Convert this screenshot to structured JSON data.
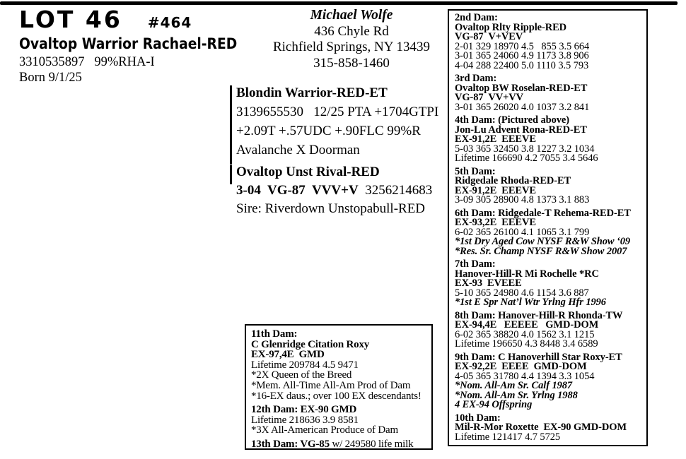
{
  "header": {
    "lot": "LOT 46",
    "number": "#464",
    "name": "Ovaltop Warrior Rachael-RED",
    "reg_line": "3310535897   99%RHA-I",
    "born": "Born 9/1/25"
  },
  "consignor": {
    "name": "Michael Wolfe",
    "address1": "436 Chyle Rd",
    "address2": "Richfield Springs, NY 13439",
    "phone": "315-858-1460"
  },
  "sire": {
    "name": "Blondin Warrior-RED-ET",
    "line1": "3139655530   12/25 PTA +1704GTPI",
    "line2": "+2.09T +.57UDC +.90FLC 99%R",
    "line3": "Avalanche X Doorman"
  },
  "dam": {
    "name": "Ovaltop Unst Rival-RED",
    "score": "3-04  VG-87  VVV+V",
    "reg": "  3256214683",
    "sire_line": "Sire: Riverdown Unstopabull-RED"
  },
  "maternal_box": {
    "blocks": [
      {
        "lines": [
          {
            "s": "b",
            "t": "11th Dam:"
          },
          {
            "s": "b",
            "t": "C Glenridge Citation Roxy"
          },
          {
            "s": "b",
            "t": "EX-97,4E  GMD"
          },
          {
            "s": "r",
            "t": "Lifetime 209784 4.5 9471"
          },
          {
            "s": "r",
            "t": "*2X Queen of the Breed"
          },
          {
            "s": "r",
            "t": "*Mem. All-Time All-Am Prod of Dam"
          },
          {
            "s": "r",
            "t": "*16-EX daus.; over 100 EX descendants!"
          }
        ]
      },
      {
        "lines": [
          {
            "s": "b",
            "t": "12th Dam: EX-90 GMD"
          },
          {
            "s": "r",
            "t": "Lifetime 218636 3.9 8581"
          },
          {
            "s": "r",
            "t": "*3X All-American Produce of Dam"
          }
        ]
      },
      {
        "lines": [
          {
            "s": "b",
            "t": "13th Dam: VG-85",
            "t2": " w/ 249580 life milk"
          }
        ]
      }
    ]
  },
  "pedigree_box": {
    "blocks": [
      {
        "lines": [
          {
            "s": "b",
            "t": "2nd Dam:"
          },
          {
            "s": "b",
            "t": "Ovaltop Rlty Ripple-RED"
          },
          {
            "s": "b",
            "t": "VG-87  V+VEV"
          },
          {
            "s": "r",
            "t": "2-01 329 18970 4.5   855 3.5 664"
          },
          {
            "s": "r",
            "t": "3-01 365 24060 4.9 1173 3.8 906"
          },
          {
            "s": "r",
            "t": "4-04 288 22400 5.0 1110 3.5 793"
          }
        ]
      },
      {
        "lines": [
          {
            "s": "b",
            "t": "3rd Dam:"
          },
          {
            "s": "b",
            "t": "Ovaltop BW Roselan-RED-ET"
          },
          {
            "s": "b",
            "t": "VG-87  VV+VV"
          },
          {
            "s": "r",
            "t": "3-01 365 26020 4.0 1037 3.2 841"
          }
        ]
      },
      {
        "lines": [
          {
            "s": "b",
            "t": "4th Dam: (Pictured above)"
          },
          {
            "s": "b",
            "t": "Jon-Lu Advent Rona-RED-ET"
          },
          {
            "s": "b",
            "t": "EX-91,2E  EEEVE"
          },
          {
            "s": "r",
            "t": "5-03 365 32450 3.8 1227 3.2 1034"
          },
          {
            "s": "r",
            "t": "Lifetime 166690 4.2 7055 3.4 5646"
          }
        ]
      },
      {
        "lines": [
          {
            "s": "b",
            "t": "5th Dam:"
          },
          {
            "s": "b",
            "t": "Ridgedale Rhoda-RED-ET"
          },
          {
            "s": "b",
            "t": "EX-91,2E  EEEVE"
          },
          {
            "s": "r",
            "t": "3-09 305 28900 4.8 1373 3.1 883"
          }
        ]
      },
      {
        "lines": [
          {
            "s": "b",
            "t": "6th Dam: Ridgedale-T Rehema-RED-ET"
          },
          {
            "s": "b",
            "t": "EX-93,2E  EEEVE"
          },
          {
            "s": "r",
            "t": "6-02 365 26100 4.1 1065 3.1 799"
          },
          {
            "s": "bi",
            "t": "*1st Dry Aged Cow NYSF R&W Show ‘09"
          },
          {
            "s": "bi",
            "t": "*Res. Sr. Champ NYSF R&W Show 2007"
          }
        ]
      },
      {
        "lines": [
          {
            "s": "b",
            "t": "7th Dam:"
          },
          {
            "s": "b",
            "t": "Hanover-Hill-R Mi Rochelle *RC"
          },
          {
            "s": "b",
            "t": "EX-93  EVEEE"
          },
          {
            "s": "r",
            "t": "5-10 365 24980 4.6 1154 3.6 887"
          },
          {
            "s": "bi",
            "t": "*1st E Spr Nat’l Wtr Yrlng Hfr 1996"
          }
        ]
      },
      {
        "lines": [
          {
            "s": "b",
            "t": "8th Dam: Hanover-Hill-R Rhonda-TW"
          },
          {
            "s": "b",
            "t": "EX-94,4E   EEEEE   GMD-DOM"
          },
          {
            "s": "r",
            "t": "6-02 365 38820 4.0 1562 3.1 1215"
          },
          {
            "s": "r",
            "t": "Lifetime 196650 4.3 8448 3.4 6589"
          }
        ]
      },
      {
        "lines": [
          {
            "s": "b",
            "t": "9th Dam: C Hanoverhill Star Roxy-ET"
          },
          {
            "s": "b",
            "t": "EX-92,2E  EEEE  GMD-DOM"
          },
          {
            "s": "r",
            "t": "4-05 365 31780 4.4 1394 3.3 1054"
          },
          {
            "s": "bi",
            "t": "*Nom. All-Am Sr. Calf 1987"
          },
          {
            "s": "bi",
            "t": "*Nom. All-Am Sr. Yrlng 1988"
          },
          {
            "s": "bi",
            "t": "4 EX-94 Offspring"
          }
        ]
      },
      {
        "lines": [
          {
            "s": "b",
            "t": "10th Dam:"
          },
          {
            "s": "b",
            "t": "Mil-R-Mor Roxette  EX-90 GMD-DOM"
          },
          {
            "s": "r",
            "t": "Lifetime 121417 4.7 5725"
          }
        ]
      }
    ]
  }
}
